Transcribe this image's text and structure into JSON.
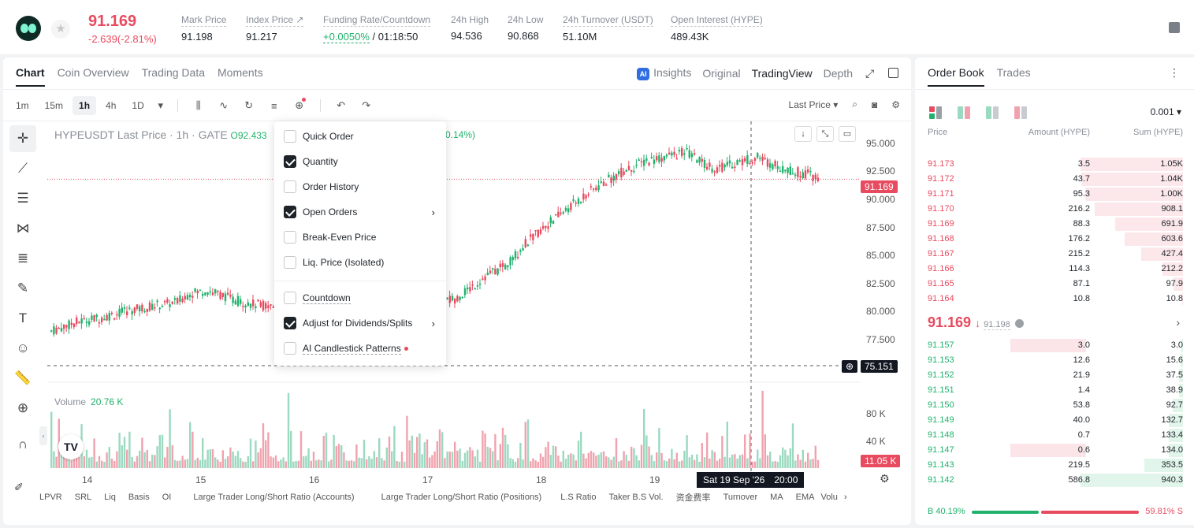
{
  "header": {
    "last_price": "91.169",
    "change": "-2.639(-2.81%)",
    "stats": [
      {
        "label": "Mark Price",
        "value": "91.198"
      },
      {
        "label": "Index Price ↗",
        "value": "91.217"
      },
      {
        "label": "Funding Rate/Countdown",
        "value_green": "+0.0050%",
        "value_rest": " / 01:18:50"
      },
      {
        "label": "24h High",
        "value": "94.536"
      },
      {
        "label": "24h Low",
        "value": "90.868"
      },
      {
        "label": "24h Turnover (USDT)",
        "value": "51.10M"
      },
      {
        "label": "Open Interest (HYPE)",
        "value": "489.43K"
      }
    ]
  },
  "chart_tabs": [
    "Chart",
    "Coin Overview",
    "Trading Data",
    "Moments"
  ],
  "view_tabs": {
    "insights": "Insights",
    "ai_badge": "AI",
    "original": "Original",
    "tradingview": "TradingView",
    "depth": "Depth"
  },
  "timeframes": [
    "1m",
    "15m",
    "1h",
    "4h",
    "1D"
  ],
  "toolbar": {
    "price_type": "Last Price"
  },
  "legend": {
    "symbol": "HYPEUSDT Last Price · 1h · GATE",
    "open": "O92.433",
    "change_pct": "0.14%)"
  },
  "volume": {
    "label": "Volume",
    "value": "20.76 K"
  },
  "y_axis": [
    "95.000",
    "92.500",
    "90.000",
    "87.500",
    "85.000",
    "82.500",
    "80.000",
    "77.500"
  ],
  "vol_axis": [
    "80 K",
    "40 K"
  ],
  "current_price_tag": "91.169",
  "crosshair_price": "75.151",
  "vol_tag": "11.05 K",
  "x_axis": [
    "14",
    "15",
    "16",
    "17",
    "18",
    "19"
  ],
  "crosshair_time": {
    "date": "Sat 19 Sep '26",
    "time": "20:00"
  },
  "indicators": [
    "LPVR",
    "SRL",
    "Liq",
    "Basis",
    "OI",
    "Large Trader Long/Short Ratio (Accounts)",
    "Large Trader Long/Short Ratio (Positions)",
    "L.S Ratio",
    "Taker B.S Vol.",
    "资金费率",
    "Turnover",
    "MA",
    "EMA",
    "Volu"
  ],
  "dropdown": [
    {
      "label": "Quick Order",
      "checked": false
    },
    {
      "label": "Quantity",
      "checked": true
    },
    {
      "label": "Order History",
      "checked": false
    },
    {
      "label": "Open Orders",
      "checked": true
    },
    {
      "label": "Break-Even Price",
      "checked": false
    },
    {
      "label": "Liq. Price (Isolated)",
      "checked": false
    },
    {
      "label": "Countdown",
      "checked": false
    },
    {
      "label": "Adjust for Dividends/Splits",
      "checked": true
    },
    {
      "label": "AI Candlestick Patterns",
      "checked": false
    }
  ],
  "orderbook": {
    "tabs": [
      "Order Book",
      "Trades"
    ],
    "precision": "0.001",
    "headers": {
      "price": "Price",
      "amount": "Amount (HYPE)",
      "sum": "Sum (HYPE)"
    },
    "asks": [
      {
        "price": "91.173",
        "amount": "3.5",
        "sum": "1.05K",
        "depth": 1.0
      },
      {
        "price": "91.172",
        "amount": "43.7",
        "sum": "1.04K",
        "depth": 0.99
      },
      {
        "price": "91.171",
        "amount": "95.3",
        "sum": "1.00K",
        "depth": 0.95
      },
      {
        "price": "91.170",
        "amount": "216.2",
        "sum": "908.1",
        "depth": 0.86
      },
      {
        "price": "91.169",
        "amount": "88.3",
        "sum": "691.9",
        "depth": 0.66
      },
      {
        "price": "91.168",
        "amount": "176.2",
        "sum": "603.6",
        "depth": 0.57
      },
      {
        "price": "91.167",
        "amount": "215.2",
        "sum": "427.4",
        "depth": 0.41
      },
      {
        "price": "91.166",
        "amount": "114.3",
        "sum": "212.2",
        "depth": 0.2
      },
      {
        "price": "91.165",
        "amount": "87.1",
        "sum": "97.9",
        "depth": 0.09
      },
      {
        "price": "91.164",
        "amount": "10.8",
        "sum": "10.8",
        "depth": 0.01
      }
    ],
    "mid_price": "91.169",
    "mid_mark": "91.198",
    "bids": [
      {
        "price": "91.157",
        "amount": "3.0",
        "sum": "3.0",
        "depth": 0.0,
        "own": 1.0
      },
      {
        "price": "91.153",
        "amount": "12.6",
        "sum": "15.6",
        "depth": 0.02,
        "own": 0
      },
      {
        "price": "91.152",
        "amount": "21.9",
        "sum": "37.5",
        "depth": 0.04,
        "own": 0
      },
      {
        "price": "91.151",
        "amount": "1.4",
        "sum": "38.9",
        "depth": 0.04,
        "own": 0
      },
      {
        "price": "91.150",
        "amount": "53.8",
        "sum": "92.7",
        "depth": 0.1,
        "own": 0
      },
      {
        "price": "91.149",
        "amount": "40.0",
        "sum": "132.7",
        "depth": 0.14,
        "own": 0
      },
      {
        "price": "91.148",
        "amount": "0.7",
        "sum": "133.4",
        "depth": 0.14,
        "own": 0
      },
      {
        "price": "91.147",
        "amount": "0.6",
        "sum": "134.0",
        "depth": 0.14,
        "own": 1.0
      },
      {
        "price": "91.143",
        "amount": "219.5",
        "sum": "353.5",
        "depth": 0.38,
        "own": 0
      },
      {
        "price": "91.142",
        "amount": "586.8",
        "sum": "940.3",
        "depth": 1.0,
        "own": 0
      }
    ],
    "ratio": {
      "buy": "B 40.19%",
      "sell": "59.81% S",
      "buy_fraction": 0.4019
    }
  },
  "colors": {
    "up": "#20b26c",
    "down": "#e84a5f",
    "up_vol": "#9bd9c0",
    "down_vol": "#f0a3ae"
  }
}
